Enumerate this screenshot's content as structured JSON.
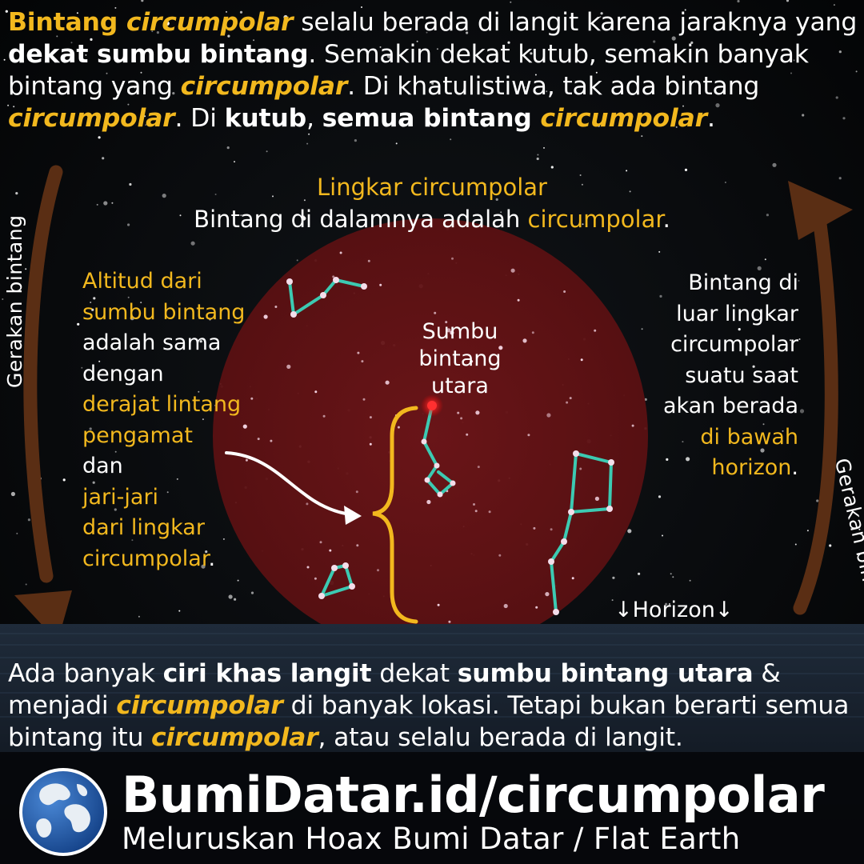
{
  "intro": {
    "s1": "Bintang ",
    "s2": "circumpolar",
    "s3": " selalu berada di langit karena jaraknya yang ",
    "s4": "dekat sumbu bintang",
    "s5": ". Semakin dekat kutub, semakin banyak bintang yang ",
    "s6": "circumpolar",
    "s7": ". Di khatulistiwa, tak ada bintang ",
    "s8": "circumpolar",
    "s9": ". Di ",
    "s10": "kutub",
    "s11": ", ",
    "s12": "semua bintang ",
    "s13": "circumpolar",
    "s14": "."
  },
  "circle_label": {
    "title": "Lingkar circumpolar",
    "line2_a": "Bintang di dalamnya adalah ",
    "line2_b": "circumpolar",
    "line2_c": "."
  },
  "left_note": {
    "l1": "Altitud dari",
    "l2": "sumbu bintang",
    "l3": "adalah sama",
    "l4": "dengan",
    "l5": "derajat lintang",
    "l6": "pengamat",
    "l7": "dan",
    "l8": "jari-jari",
    "l9": "dari lingkar",
    "l10": "circumpolar",
    "l11": "."
  },
  "right_note": {
    "l1": "Bintang di",
    "l2": "luar lingkar",
    "l3": "circumpolar",
    "l4": "suatu saat",
    "l5": "akan berada",
    "l6": "di bawah",
    "l7": "horizon",
    "l8": "."
  },
  "pole_label": {
    "l1": "Sumbu",
    "l2": "bintang",
    "l3": "utara"
  },
  "horizon_label": "↓Horizon↓",
  "motion_left": "Gerakan bintang",
  "motion_right": "Gerakan bintang",
  "outro": {
    "s1": "Ada banyak ",
    "s2": "ciri khas langit",
    "s3": " dekat ",
    "s4": "sumbu bintang utara",
    "s5": " & menjadi ",
    "s6": "circumpolar",
    "s7": " di banyak lokasi. Tetapi bukan berarti semua bintang itu ",
    "s8": "circumpolar",
    "s9": ", atau selalu berada di langit."
  },
  "footer": {
    "domain": "BumiDatar.id/circumpolar",
    "tagline": "Meluruskan Hoax Bumi Datar / Flat Earth"
  },
  "colors": {
    "accent": "#f2b81e",
    "circle": "#6e1518",
    "constellation": "#3ccab2",
    "arrow": "#5a2e14",
    "sky": "#050608",
    "sea": "#1e2a38"
  },
  "icons": [
    "globe-logo-icon",
    "curved-arrow-icon",
    "brace-icon",
    "pole-star-icon"
  ]
}
